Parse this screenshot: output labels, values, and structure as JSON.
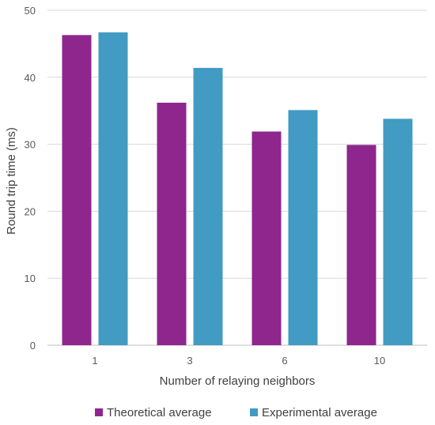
{
  "chart_data": {
    "type": "bar",
    "categories": [
      "1",
      "3",
      "6",
      "10"
    ],
    "series": [
      {
        "name": "Theoretical average",
        "values": [
          46.3,
          36.2,
          31.9,
          29.9
        ]
      },
      {
        "name": "Experimental average",
        "values": [
          46.7,
          41.4,
          35.1,
          33.8
        ]
      }
    ],
    "xlabel": "Number of relaying neighbors",
    "ylabel": "Round trip time (ms)",
    "ylim": [
      0,
      50
    ],
    "yticks": [
      0,
      10,
      20,
      30,
      40,
      50
    ],
    "grid": true,
    "legend_position": "bottom",
    "colors": {
      "series": [
        "#8E268E",
        "#419BC2"
      ],
      "grid": "#D9D9D9",
      "axis": "#BFBFBF"
    }
  }
}
